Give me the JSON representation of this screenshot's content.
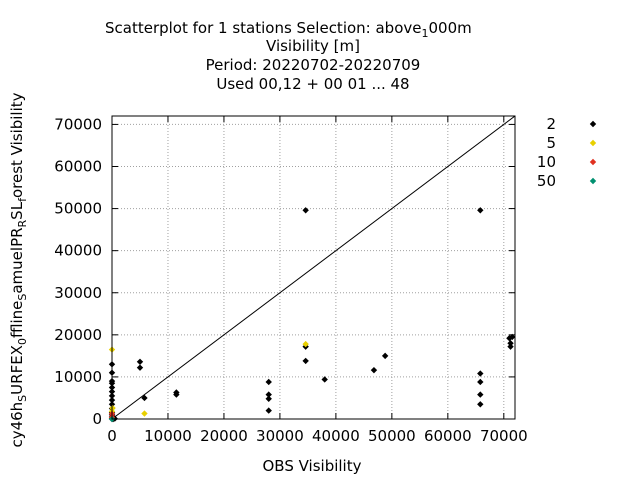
{
  "chart_data": {
    "type": "scatter",
    "title_lines": [
      "Scatterplot for    1 stations Selection: above",
      "Visibility [m]",
      "Period: 20220702-20220709",
      "Used  00,12  + 00 01 ... 48"
    ],
    "title_above_sub": "1",
    "title_above_tail": "000m",
    "xlabel": "OBS Visibility",
    "ylabel": "cy46h_S URFEX_0 ffline_S amuelPR_R SL_f orest Visibility",
    "ylabel_parts": [
      "cy46h",
      "S",
      "URFEX",
      "0",
      "ffline",
      "S",
      "amuelPR",
      "R",
      "SL",
      "f",
      "orest Visibility"
    ],
    "xlim": [
      0,
      72000
    ],
    "ylim": [
      0,
      72000
    ],
    "x_ticks": [
      "0",
      "10000",
      "20000",
      "30000",
      "40000",
      "50000",
      "60000",
      "70000"
    ],
    "y_ticks": [
      "0",
      "10000",
      "20000",
      "30000",
      "40000",
      "50000",
      "60000",
      "70000"
    ],
    "x_tick_values": [
      0,
      10000,
      20000,
      30000,
      40000,
      50000,
      60000,
      70000
    ],
    "y_tick_values": [
      0,
      10000,
      20000,
      30000,
      40000,
      50000,
      60000,
      70000
    ],
    "grid": true,
    "legend_position": "right",
    "diagonal": true,
    "series": [
      {
        "name": "2",
        "color": "#000000",
        "points": [
          [
            0,
            500
          ],
          [
            0,
            1000
          ],
          [
            0,
            1500
          ],
          [
            0,
            2500
          ],
          [
            0,
            3500
          ],
          [
            0,
            4500
          ],
          [
            0,
            5500
          ],
          [
            0,
            6500
          ],
          [
            0,
            7500
          ],
          [
            0,
            8500
          ],
          [
            0,
            9000
          ],
          [
            0,
            11000
          ],
          [
            0,
            13000
          ],
          [
            0,
            100
          ],
          [
            0,
            0
          ],
          [
            200,
            0
          ],
          [
            500,
            100
          ],
          [
            5000,
            12200
          ],
          [
            5000,
            13600
          ],
          [
            5800,
            5000
          ],
          [
            11500,
            5800
          ],
          [
            11500,
            6300
          ],
          [
            28000,
            2000
          ],
          [
            28000,
            4800
          ],
          [
            28000,
            5800
          ],
          [
            28000,
            8800
          ],
          [
            34600,
            49600
          ],
          [
            34600,
            13800
          ],
          [
            34600,
            17200
          ],
          [
            38000,
            9400
          ],
          [
            46800,
            11600
          ],
          [
            48800,
            15000
          ],
          [
            65800,
            49600
          ],
          [
            65800,
            10800
          ],
          [
            65800,
            8800
          ],
          [
            65800,
            5800
          ],
          [
            65800,
            3500
          ],
          [
            71000,
            19200
          ],
          [
            71200,
            18000
          ],
          [
            71200,
            17200
          ],
          [
            71500,
            19500
          ]
        ]
      },
      {
        "name": "5",
        "color": "#e8d000",
        "points": [
          [
            0,
            16500
          ],
          [
            0,
            1800
          ],
          [
            5800,
            1300
          ],
          [
            34600,
            17800
          ],
          [
            100,
            2600
          ]
        ]
      },
      {
        "name": "10",
        "color": "#e03020",
        "points": [
          [
            0,
            1200
          ],
          [
            0,
            400
          ]
        ]
      },
      {
        "name": "50",
        "color": "#009070",
        "points": [
          [
            0,
            0
          ]
        ]
      }
    ]
  }
}
